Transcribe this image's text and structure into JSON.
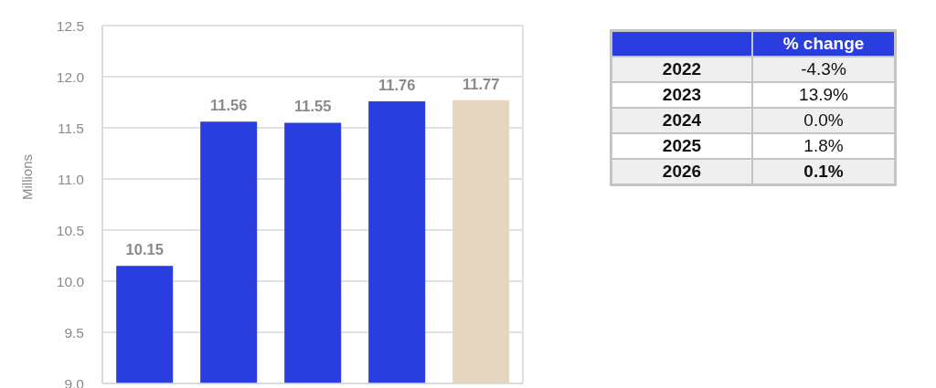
{
  "chart_data": [
    {
      "type": "bar",
      "ylabel": "Millions",
      "categories": [
        null,
        null,
        null,
        null,
        null
      ],
      "values": [
        10.15,
        11.56,
        11.55,
        11.76,
        11.77
      ],
      "colors": [
        "#2a3ee0",
        "#2a3ee0",
        "#2a3ee0",
        "#2a3ee0",
        "#e6d5bf"
      ],
      "ylim": [
        9,
        12.5
      ],
      "yticks": [
        {
          "value": 9,
          "label": "9.0"
        },
        9.5,
        {
          "value": 10,
          "label": "10.0"
        },
        10.5,
        {
          "value": 11,
          "label": "11.0"
        },
        11.5,
        {
          "value": 12,
          "label": "12.0"
        },
        12.5
      ],
      "grid": "y",
      "data_labels": true
    },
    {
      "type": "heatmap",
      "categories": [
        "% change"
      ],
      "y_categories": [
        "2022",
        "2023",
        "2024",
        "2025",
        "2026"
      ],
      "cells": [
        [
          -4.3
        ],
        [
          13.9
        ],
        [
          0.0
        ],
        [
          1.8
        ],
        [
          0.1
        ]
      ],
      "cell_labels": [
        [
          "-4.3%"
        ],
        [
          "13.9%"
        ],
        [
          "0.0%"
        ],
        [
          "1.8%"
        ],
        [
          "0.1%"
        ]
      ]
    }
  ]
}
